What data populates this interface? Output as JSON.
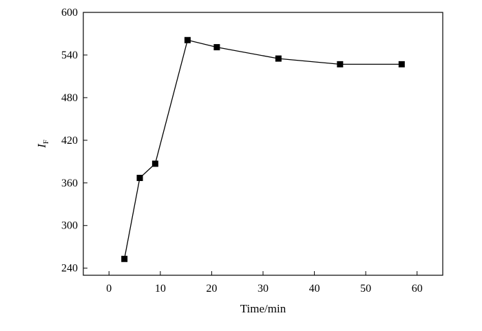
{
  "chart_data": {
    "type": "line",
    "xlabel": "Time/min",
    "ylabel": "I",
    "ylabel_subscript": "F",
    "xlim": [
      -5,
      65
    ],
    "ylim": [
      230,
      600
    ],
    "x_ticks": [
      0,
      10,
      20,
      30,
      40,
      50,
      60
    ],
    "y_ticks": [
      240,
      300,
      360,
      420,
      480,
      540,
      600
    ],
    "grid": false,
    "series": [
      {
        "marker": "square",
        "color": "#000000",
        "points": [
          {
            "x": 3,
            "y": 253
          },
          {
            "x": 6,
            "y": 367
          },
          {
            "x": 9,
            "y": 387
          },
          {
            "x": 15.3,
            "y": 561
          },
          {
            "x": 21,
            "y": 551
          },
          {
            "x": 33,
            "y": 535
          },
          {
            "x": 45,
            "y": 527
          },
          {
            "x": 57,
            "y": 527
          }
        ]
      }
    ]
  }
}
